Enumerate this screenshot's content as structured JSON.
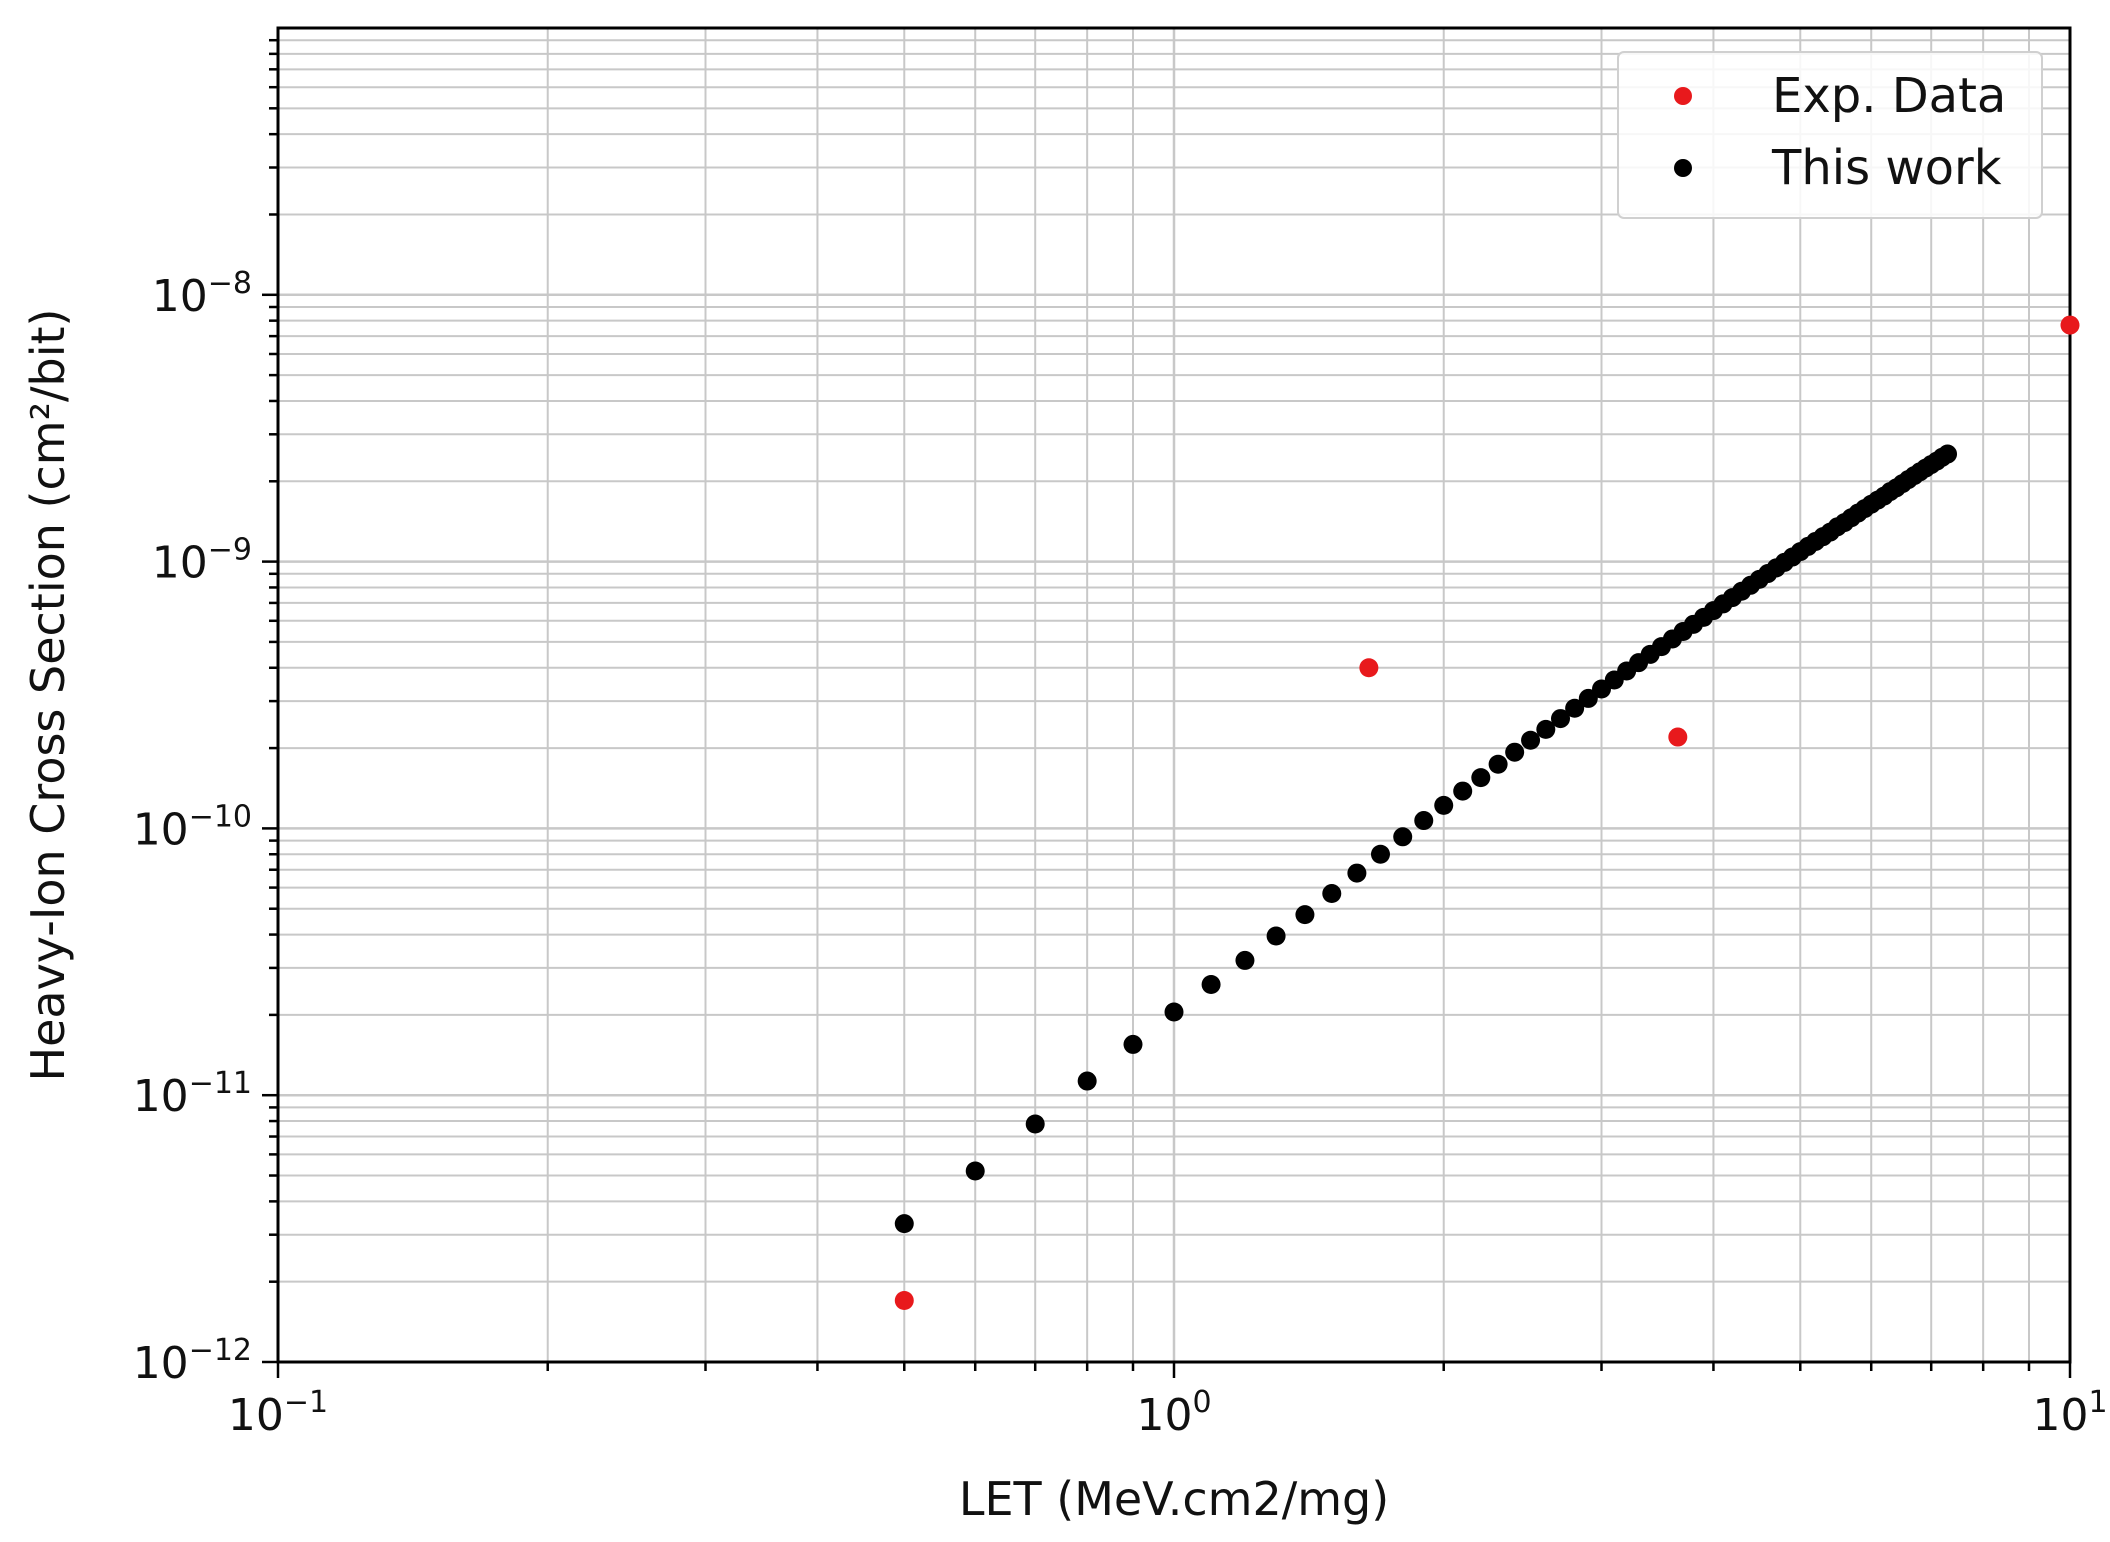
{
  "chart_data": {
    "type": "scatter",
    "title": "",
    "xlabel": "LET (MeV.cm2/mg)",
    "ylabel": "Heavy-Ion Cross Section (cm²/bit)",
    "xscale": "log",
    "yscale": "log",
    "xlim": [
      0.1,
      10
    ],
    "ylim": [
      1e-12,
      1e-07
    ],
    "grid": "major and minor",
    "legend_position": "top-right",
    "x_ticks": [
      {
        "base": "10",
        "exp": "−1",
        "value": 0.1
      },
      {
        "base": "10",
        "exp": "0",
        "value": 1
      },
      {
        "base": "10",
        "exp": "1",
        "value": 10
      }
    ],
    "y_ticks": [
      {
        "base": "10",
        "exp": "−12",
        "value": 1e-12
      },
      {
        "base": "10",
        "exp": "−11",
        "value": 1e-11
      },
      {
        "base": "10",
        "exp": "−10",
        "value": 1e-10
      },
      {
        "base": "10",
        "exp": "−9",
        "value": 1e-09
      },
      {
        "base": "10",
        "exp": "−8",
        "value": 1e-08
      }
    ],
    "series": [
      {
        "name": "Exp. Data",
        "color": "#e8191c",
        "points": [
          [
            0.5,
            1.7e-12
          ],
          [
            1.65,
            4e-10
          ],
          [
            3.65,
            2.2e-10
          ],
          [
            10.0,
            7.7e-09
          ]
        ]
      },
      {
        "name": "This work",
        "color": "#000000",
        "points": [
          [
            0.5,
            3.3e-12
          ],
          [
            0.6,
            5.2e-12
          ],
          [
            0.7,
            7.8e-12
          ],
          [
            0.8,
            1.13e-11
          ],
          [
            0.9,
            1.55e-11
          ],
          [
            1.0,
            2.05e-11
          ],
          [
            1.1,
            2.6e-11
          ],
          [
            1.2,
            3.2e-11
          ],
          [
            1.3,
            3.95e-11
          ],
          [
            1.4,
            4.75e-11
          ],
          [
            1.5,
            5.7e-11
          ],
          [
            1.6,
            6.8e-11
          ],
          [
            1.7,
            8e-11
          ],
          [
            1.8,
            9.3e-11
          ],
          [
            1.9,
            1.07e-10
          ],
          [
            2.0,
            1.22e-10
          ],
          [
            2.1,
            1.38e-10
          ],
          [
            2.2,
            1.55e-10
          ],
          [
            2.3,
            1.74e-10
          ],
          [
            2.4,
            1.93e-10
          ],
          [
            2.5,
            2.14e-10
          ],
          [
            2.6,
            2.35e-10
          ],
          [
            2.7,
            2.58e-10
          ],
          [
            2.8,
            2.82e-10
          ],
          [
            2.9,
            3.07e-10
          ],
          [
            3.0,
            3.33e-10
          ],
          [
            3.1,
            3.6e-10
          ],
          [
            3.2,
            3.89e-10
          ],
          [
            3.3,
            4.18e-10
          ],
          [
            3.4,
            4.49e-10
          ],
          [
            3.5,
            4.8e-10
          ],
          [
            3.6,
            5.13e-10
          ],
          [
            3.7,
            5.47e-10
          ],
          [
            3.8,
            5.82e-10
          ],
          [
            3.9,
            6.18e-10
          ],
          [
            4.0,
            6.55e-10
          ],
          [
            4.1,
            6.94e-10
          ],
          [
            4.2,
            7.33e-10
          ],
          [
            4.3,
            7.74e-10
          ],
          [
            4.4,
            8.15e-10
          ],
          [
            4.5,
            8.58e-10
          ],
          [
            4.6,
            9.02e-10
          ],
          [
            4.7,
            9.47e-10
          ],
          [
            4.8,
            9.93e-10
          ],
          [
            4.9,
            1.04e-09
          ],
          [
            5.0,
            1.09e-09
          ],
          [
            5.1,
            1.14e-09
          ],
          [
            5.2,
            1.19e-09
          ],
          [
            5.3,
            1.24e-09
          ],
          [
            5.4,
            1.29e-09
          ],
          [
            5.5,
            1.35e-09
          ],
          [
            5.6,
            1.4e-09
          ],
          [
            5.7,
            1.46e-09
          ],
          [
            5.8,
            1.52e-09
          ],
          [
            5.9,
            1.58e-09
          ],
          [
            6.0,
            1.64e-09
          ],
          [
            6.1,
            1.7e-09
          ],
          [
            6.2,
            1.76e-09
          ],
          [
            6.3,
            1.83e-09
          ],
          [
            6.4,
            1.89e-09
          ],
          [
            6.5,
            1.96e-09
          ],
          [
            6.6,
            2.03e-09
          ],
          [
            6.7,
            2.1e-09
          ],
          [
            6.8,
            2.17e-09
          ],
          [
            6.9,
            2.24e-09
          ],
          [
            7.0,
            2.31e-09
          ],
          [
            7.1,
            2.38e-09
          ],
          [
            7.2,
            2.46e-09
          ],
          [
            7.3,
            2.53e-09
          ]
        ]
      }
    ]
  }
}
